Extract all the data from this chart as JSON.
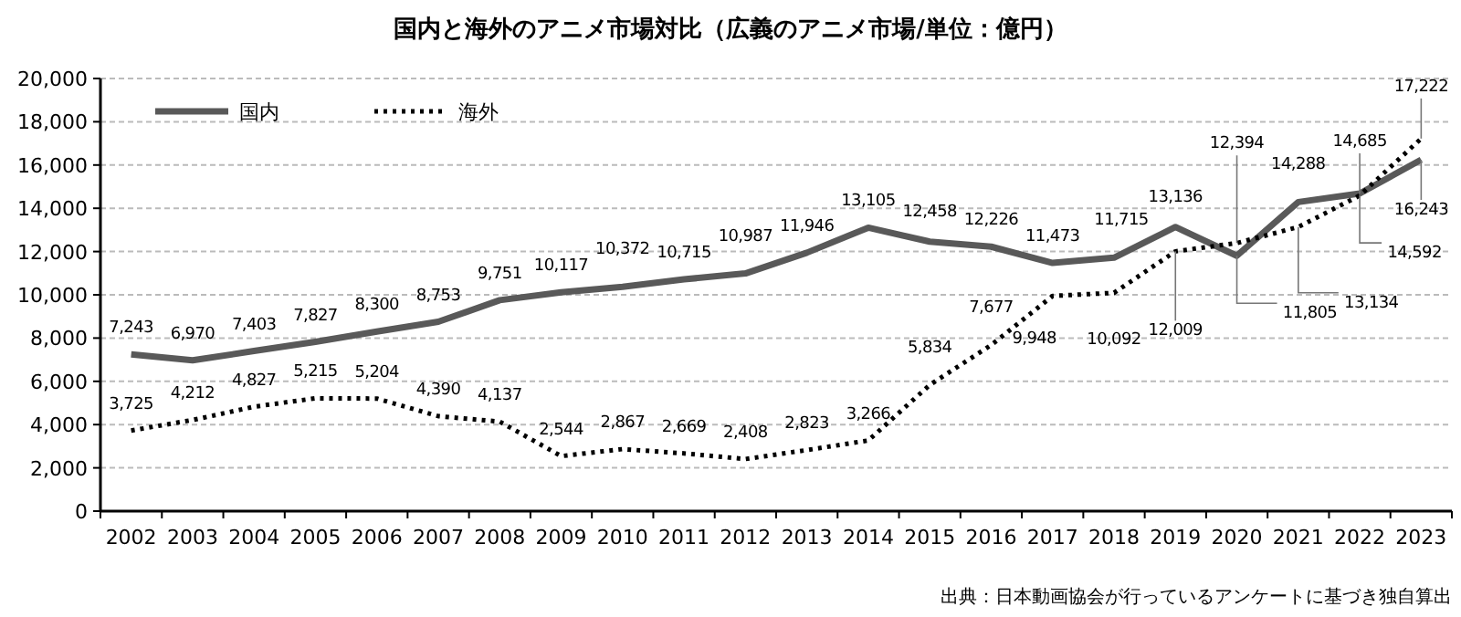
{
  "chart_data": {
    "type": "line",
    "title": "国内と海外のアニメ市場対比（広義のアニメ市場/単位：億円）",
    "categories": [
      "2002",
      "2003",
      "2004",
      "2005",
      "2006",
      "2007",
      "2008",
      "2009",
      "2010",
      "2011",
      "2012",
      "2013",
      "2014",
      "2015",
      "2016",
      "2017",
      "2018",
      "2019",
      "2020",
      "2021",
      "2022",
      "2023"
    ],
    "series": [
      {
        "name": "国内",
        "color": "#595959",
        "line_style": "solid",
        "values": [
          7243,
          6970,
          7403,
          7827,
          8300,
          8753,
          9751,
          10117,
          10372,
          10715,
          10987,
          11946,
          13105,
          12458,
          12226,
          11473,
          11715,
          13136,
          11805,
          14288,
          14685,
          16243
        ],
        "value_labels": [
          "7,243",
          "6,970",
          "7,403",
          "7,827",
          "8,300",
          "8,753",
          "9,751",
          "10,117",
          "10,372",
          "10,715",
          "10,987",
          "11,946",
          "13,105",
          "12,458",
          "12,226",
          "11,473",
          "11,715",
          "13,136",
          "11,805",
          "14,288",
          "14,685",
          "16,243"
        ]
      },
      {
        "name": "海外",
        "color": "#000000",
        "line_style": "dotted",
        "values": [
          3725,
          4212,
          4827,
          5215,
          5204,
          4390,
          4137,
          2544,
          2867,
          2669,
          2408,
          2823,
          3266,
          5834,
          7677,
          9948,
          10092,
          12009,
          12394,
          13134,
          14592,
          17222
        ],
        "value_labels": [
          "3,725",
          "4,212",
          "4,827",
          "5,215",
          "5,204",
          "4,390",
          "4,137",
          "2,544",
          "2,867",
          "2,669",
          "2,408",
          "2,823",
          "3,266",
          "5,834",
          "7,677",
          "9,948",
          "10,092",
          "12,009",
          "12,394",
          "13,134",
          "14,592",
          "17,222"
        ]
      }
    ],
    "ylim": [
      0,
      20000
    ],
    "yticks": [
      0,
      {
        "value": 2000,
        "label": "2,000"
      },
      {
        "value": 4000,
        "label": "4,000"
      },
      {
        "value": 6000,
        "label": "6,000"
      },
      {
        "value": 8000,
        "label": "8,000"
      },
      {
        "value": 10000,
        "label": "10,000"
      },
      {
        "value": 12000,
        "label": "12,000"
      },
      {
        "value": 14000,
        "label": "14,000"
      },
      {
        "value": 16000,
        "label": "16,000"
      },
      {
        "value": 18000,
        "label": "18,000"
      },
      {
        "value": 20000,
        "label": "20,000"
      }
    ],
    "grid": "y",
    "legend": "top left",
    "marker": "none",
    "annotations": [
      "出典：日本動画協会が行っているアンケートに基づき独自算出"
    ]
  }
}
